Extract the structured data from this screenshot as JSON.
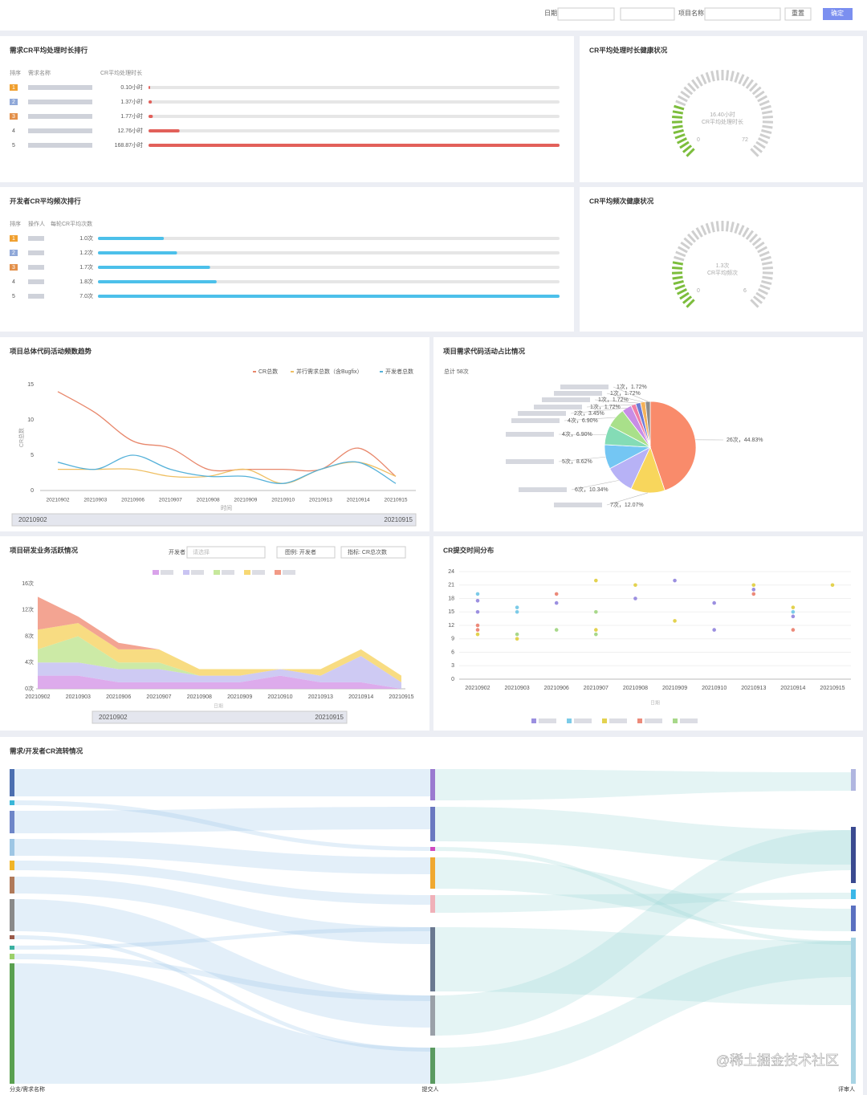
{
  "header": {
    "date_label": "日期",
    "project_label": "项目名称",
    "reset": "重置",
    "confirm": "确定"
  },
  "watermark": "@稀土掘金技术社区",
  "chart_data": [
    {
      "type": "rankbar",
      "title": "需求CR平均处理时长排行",
      "columns": [
        "排序",
        "需求名称",
        "CR平均处理时长"
      ],
      "ranks": [
        1,
        2,
        3,
        4,
        5
      ],
      "values": [
        0.1,
        1.37,
        1.77,
        12.76,
        168.87
      ],
      "value_labels": [
        "0.10小时",
        "1.37小时",
        "1.77小时",
        "12.76小时",
        "168.87小时"
      ],
      "color": "#e2605a"
    },
    {
      "type": "gauge",
      "title": "CR平均处理时长健康状况",
      "value": 16.4,
      "value_label": "16.40小时",
      "subtitle": "CR平均处理时长",
      "ticks": [
        0,
        72
      ],
      "color": "#7cbd3c"
    },
    {
      "type": "rankbar",
      "title": "开发者CR平均频次排行",
      "columns": [
        "排序",
        "操作人",
        "每轮CR平均次数"
      ],
      "ranks": [
        1,
        2,
        3,
        4,
        5
      ],
      "values": [
        1.0,
        1.2,
        1.7,
        1.8,
        7.0
      ],
      "value_labels": [
        "1.0次",
        "1.2次",
        "1.7次",
        "1.8次",
        "7.0次"
      ],
      "color": "#4cc0ea"
    },
    {
      "type": "gauge",
      "title": "CR平均频次健康状况",
      "value": 1.3,
      "value_label": "1.3次",
      "subtitle": "CR平均频次",
      "ticks": [
        0,
        6
      ],
      "color": "#7cbd3c"
    },
    {
      "type": "line",
      "title": "项目总体代码活动频数趋势",
      "y_label": "CR总数",
      "x_label": "时间",
      "categories": [
        "20210902",
        "20210903",
        "20210906",
        "20210907",
        "20210908",
        "20210909",
        "20210910",
        "20210913",
        "20210914",
        "20210915"
      ],
      "series": [
        {
          "name": "CR总数",
          "color": "#e8876b",
          "values": [
            14,
            11,
            7,
            6,
            3,
            3,
            3,
            3,
            6,
            2
          ]
        },
        {
          "name": "并行需求总数（含Bugfix）",
          "color": "#efbf62",
          "values": [
            3,
            3,
            3,
            2,
            2,
            3,
            1,
            3,
            4,
            2
          ]
        },
        {
          "name": "开发者总数",
          "color": "#55b1d9",
          "values": [
            4,
            3,
            5,
            3,
            2,
            2,
            1,
            3,
            4,
            1
          ]
        }
      ],
      "ylim": [
        0,
        15
      ],
      "yticks": [
        0,
        5,
        10,
        15
      ],
      "zoom_labels": [
        "20210902",
        "20210915"
      ]
    },
    {
      "type": "pie",
      "title": "项目需求代码活动占比情况",
      "total_label": "总计 58次",
      "values": [
        26,
        7,
        6,
        5,
        4,
        4,
        2,
        1,
        1,
        1,
        1
      ],
      "value_labels": [
        "26次，44.83%",
        "7次，12.07%",
        "6次，10.34%",
        "5次，8.62%",
        "4次，6.90%",
        "4次，6.90%",
        "2次，3.45%",
        "1次，1.72%",
        "1次，1.72%",
        "1次，1.72%",
        "1次，1.72%"
      ],
      "colors": [
        "#f98b6b",
        "#f8d65c",
        "#b7b2f6",
        "#74c6f3",
        "#84dcb6",
        "#a9e08a",
        "#c78de6",
        "#f07ea6",
        "#6d7bd6",
        "#f5b25a",
        "#8c8c8c"
      ]
    },
    {
      "type": "area",
      "title": "项目研发业务活跃情况",
      "filter_label": "开发者",
      "filter_placeholder": "请选择",
      "legend_control": "图例: 开发者",
      "metric_control": "指标: CR总次数",
      "x_label": "日期",
      "categories": [
        "20210902",
        "20210903",
        "20210906",
        "20210907",
        "20210908",
        "20210909",
        "20210910",
        "20210913",
        "20210914",
        "20210915"
      ],
      "series": [
        {
          "color": "#d9a2ea",
          "values": [
            2,
            2,
            1,
            1,
            1,
            1,
            2,
            1,
            1,
            0
          ]
        },
        {
          "color": "#c9c4f2",
          "values": [
            2,
            2,
            2,
            2,
            1,
            1,
            1,
            1,
            4,
            1
          ]
        },
        {
          "color": "#c6e89c",
          "values": [
            2,
            4,
            1,
            1,
            0,
            0,
            0,
            0,
            0,
            0
          ]
        },
        {
          "color": "#f7d874",
          "values": [
            3,
            2,
            2,
            2,
            1,
            1,
            0,
            1,
            1,
            1
          ]
        },
        {
          "color": "#f29a86",
          "values": [
            5,
            1,
            1,
            0,
            0,
            0,
            0,
            0,
            0,
            0
          ]
        }
      ],
      "ylim": [
        0,
        16
      ],
      "yticks": [
        {
          "value": 0,
          "label": "0次"
        },
        {
          "value": 4,
          "label": "4次"
        },
        {
          "value": 8,
          "label": "8次"
        },
        {
          "value": 12,
          "label": "12次"
        },
        {
          "value": 16,
          "label": "16次"
        }
      ],
      "zoom_labels": [
        "20210902",
        "20210915"
      ]
    },
    {
      "type": "scatter",
      "title": "CR提交时间分布",
      "x_label": "日期",
      "categories": [
        "20210902",
        "20210903",
        "20210906",
        "20210907",
        "20210908",
        "20210909",
        "20210910",
        "20210913",
        "20210914",
        "20210915"
      ],
      "series": [
        {
          "color": "#9b8fe0",
          "x": [
            "20210902",
            "20210902",
            "20210906",
            "20210908",
            "20210909",
            "20210910",
            "20210910",
            "20210913",
            "20210914"
          ],
          "values": [
            17.5,
            15,
            17,
            18,
            22,
            17,
            11,
            20,
            14
          ]
        },
        {
          "color": "#7ccbe8",
          "x": [
            "20210902",
            "20210903",
            "20210903",
            "20210914"
          ],
          "values": [
            19,
            16,
            15,
            15
          ]
        },
        {
          "color": "#e3d24f",
          "x": [
            "20210902",
            "20210903",
            "20210907",
            "20210907",
            "20210908",
            "20210909",
            "20210913",
            "20210914",
            "20210915"
          ],
          "values": [
            10,
            9,
            22,
            11,
            21,
            13,
            21,
            16,
            21
          ]
        },
        {
          "color": "#ec8a7a",
          "x": [
            "20210902",
            "20210902",
            "20210906",
            "20210913",
            "20210914"
          ],
          "values": [
            12,
            11,
            19,
            19,
            11
          ]
        },
        {
          "color": "#a8d88a",
          "x": [
            "20210903",
            "20210907",
            "20210907",
            "20210906"
          ],
          "values": [
            10,
            15,
            10,
            11
          ]
        }
      ],
      "ylim": [
        0,
        24
      ],
      "yticks": [
        0,
        3,
        6,
        9,
        12,
        15,
        18,
        21,
        24
      ]
    },
    {
      "type": "sankey",
      "title": "需求/开发者CR流转情况",
      "columns": [
        "分支/需求名称",
        "提交人",
        "评审人"
      ]
    }
  ]
}
